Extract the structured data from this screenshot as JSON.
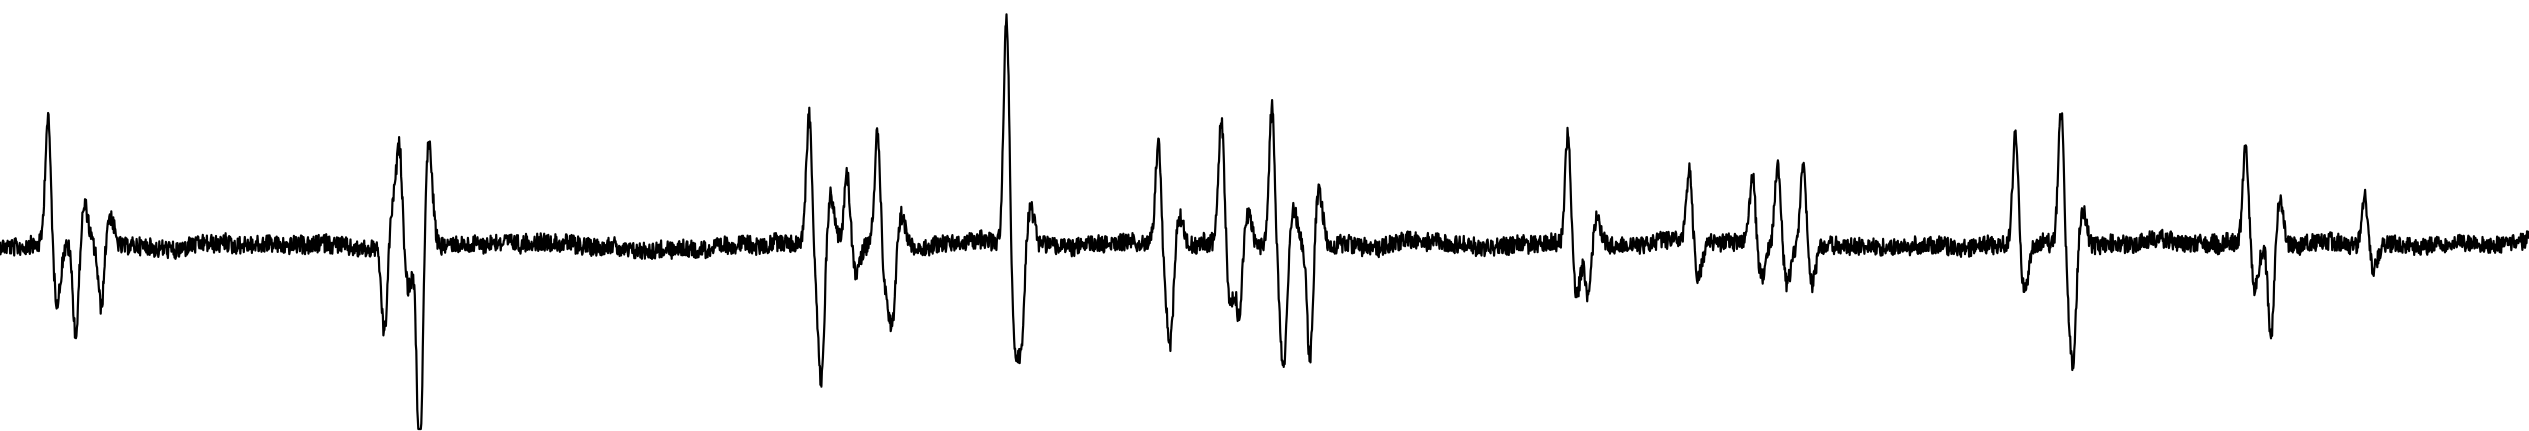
{
  "trace": {
    "stroke_color": "#000000",
    "background_color": "#ffffff",
    "baseline_noise": 9,
    "spikes": [
      {
        "t": 0.019,
        "amp": -0.55
      },
      {
        "t": 0.03,
        "amp": 0.4
      },
      {
        "t": 0.04,
        "amp": 0.28
      },
      {
        "t": 0.152,
        "amp": 0.38
      },
      {
        "t": 0.158,
        "amp": -0.4
      },
      {
        "t": 0.166,
        "amp": 1.0
      },
      {
        "t": 0.32,
        "amp": -0.55
      },
      {
        "t": 0.325,
        "amp": 0.45
      },
      {
        "t": 0.335,
        "amp": -0.3
      },
      {
        "t": 0.347,
        "amp": -0.5
      },
      {
        "t": 0.353,
        "amp": 0.3
      },
      {
        "t": 0.398,
        "amp": -1.0
      },
      {
        "t": 0.404,
        "amp": 0.35
      },
      {
        "t": 0.458,
        "amp": -0.45
      },
      {
        "t": 0.463,
        "amp": 0.3
      },
      {
        "t": 0.483,
        "amp": -0.55
      },
      {
        "t": 0.49,
        "amp": 0.3
      },
      {
        "t": 0.503,
        "amp": -0.62
      },
      {
        "t": 0.508,
        "amp": 0.35
      },
      {
        "t": 0.518,
        "amp": 0.52
      },
      {
        "t": 0.62,
        "amp": -0.5
      },
      {
        "t": 0.628,
        "amp": 0.25
      },
      {
        "t": 0.668,
        "amp": -0.32
      },
      {
        "t": 0.693,
        "amp": -0.3
      },
      {
        "t": 0.703,
        "amp": -0.36
      },
      {
        "t": 0.713,
        "amp": -0.36
      },
      {
        "t": 0.797,
        "amp": -0.48
      },
      {
        "t": 0.815,
        "amp": -0.6
      },
      {
        "t": 0.82,
        "amp": 0.35
      },
      {
        "t": 0.888,
        "amp": -0.42
      },
      {
        "t": 0.898,
        "amp": 0.4
      },
      {
        "t": 0.935,
        "amp": -0.22
      }
    ]
  }
}
